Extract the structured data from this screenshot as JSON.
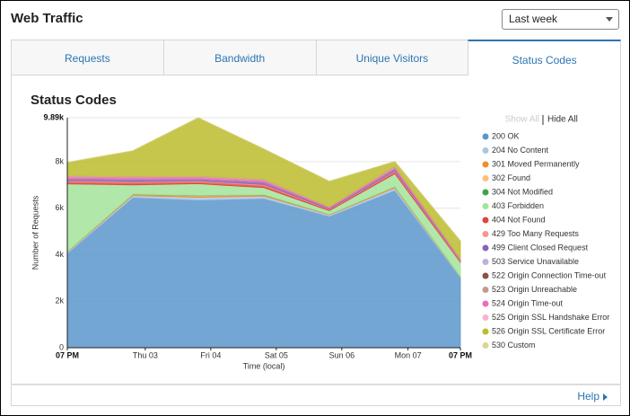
{
  "header": {
    "title": "Web Traffic",
    "range_select": "Last week"
  },
  "tabs": [
    "Requests",
    "Bandwidth",
    "Unique Visitors",
    "Status Codes"
  ],
  "footer": {
    "help": "Help"
  },
  "chart_data": {
    "type": "stacked_area",
    "title": "Status Codes",
    "y_label": "Number of Requests",
    "x_label": "Time (local)",
    "legend_controls": [
      "Show All",
      "Hide All"
    ],
    "x": [
      0,
      1,
      2,
      3,
      4,
      5,
      6
    ],
    "xlim": [
      0,
      6
    ],
    "xticks": [
      {
        "value": 0,
        "label": "07 PM"
      },
      {
        "value": 1.19,
        "label": "Thu 03"
      },
      {
        "value": 2.19,
        "label": "Fri 04"
      },
      {
        "value": 3.19,
        "label": "Sat 05"
      },
      {
        "value": 4.19,
        "label": "Sun 06"
      },
      {
        "value": 5.2,
        "label": "Mon 07"
      },
      {
        "value": 6,
        "label": "07 PM"
      }
    ],
    "ylim": [
      0,
      9890
    ],
    "yticks": [
      0,
      {
        "value": 2000,
        "label": "2k"
      },
      {
        "value": 4000,
        "label": "4k"
      },
      {
        "value": 6000,
        "label": "6k"
      },
      {
        "value": 8000,
        "label": "8k"
      },
      {
        "value": 9890,
        "label": "9.89k"
      }
    ],
    "grid": true,
    "series": [
      {
        "name": "200 OK",
        "color": "#5b96cb",
        "values": [
          4060,
          6460,
          6350,
          6420,
          5650,
          6770,
          3020
        ]
      },
      {
        "name": "204 No Content",
        "color": "#a9c6e3",
        "values": [
          50,
          80,
          120,
          100,
          60,
          100,
          30
        ]
      },
      {
        "name": "301 Moved Permanently",
        "color": "#f28e2b",
        "values": [
          20,
          40,
          60,
          40,
          20,
          40,
          10
        ]
      },
      {
        "name": "302 Found",
        "color": "#ffbe7d",
        "values": [
          5,
          10,
          10,
          10,
          5,
          10,
          5
        ]
      },
      {
        "name": "304 Not Modified",
        "color": "#3ca44a",
        "values": [
          5,
          10,
          10,
          10,
          5,
          10,
          5
        ]
      },
      {
        "name": "403 Forbidden",
        "color": "#a3e49a",
        "values": [
          2900,
          400,
          500,
          300,
          150,
          550,
          600
        ]
      },
      {
        "name": "404 Not Found",
        "color": "#e0453f",
        "values": [
          100,
          100,
          80,
          100,
          40,
          80,
          40
        ]
      },
      {
        "name": "429 Too Many Requests",
        "color": "#f7968f",
        "values": [
          40,
          40,
          40,
          40,
          20,
          40,
          20
        ]
      },
      {
        "name": "499 Client Closed Request",
        "color": "#8c63b6",
        "values": [
          60,
          80,
          60,
          80,
          30,
          60,
          20
        ]
      },
      {
        "name": "503 Service Unavailable",
        "color": "#c2aed6",
        "values": [
          10,
          10,
          10,
          10,
          10,
          10,
          10
        ]
      },
      {
        "name": "522 Origin Connection Time-out",
        "color": "#8a5146",
        "values": [
          10,
          10,
          10,
          10,
          10,
          10,
          10
        ]
      },
      {
        "name": "523 Origin Unreachable",
        "color": "#c39a90",
        "values": [
          10,
          10,
          10,
          10,
          10,
          10,
          10
        ]
      },
      {
        "name": "524 Origin Time-out",
        "color": "#e570c0",
        "values": [
          100,
          100,
          100,
          100,
          40,
          100,
          40
        ]
      },
      {
        "name": "525 Origin SSL Handshake Error",
        "color": "#f6b4d0",
        "values": [
          10,
          10,
          10,
          10,
          10,
          10,
          10
        ]
      },
      {
        "name": "526 Origin SSL Certificate Error",
        "color": "#bcbc2e",
        "values": [
          590,
          1110,
          2520,
          1310,
          1100,
          210,
          770
        ]
      },
      {
        "name": "530 Custom",
        "color": "#ddd692",
        "values": [
          0,
          0,
          0,
          0,
          0,
          0,
          0
        ]
      }
    ]
  }
}
